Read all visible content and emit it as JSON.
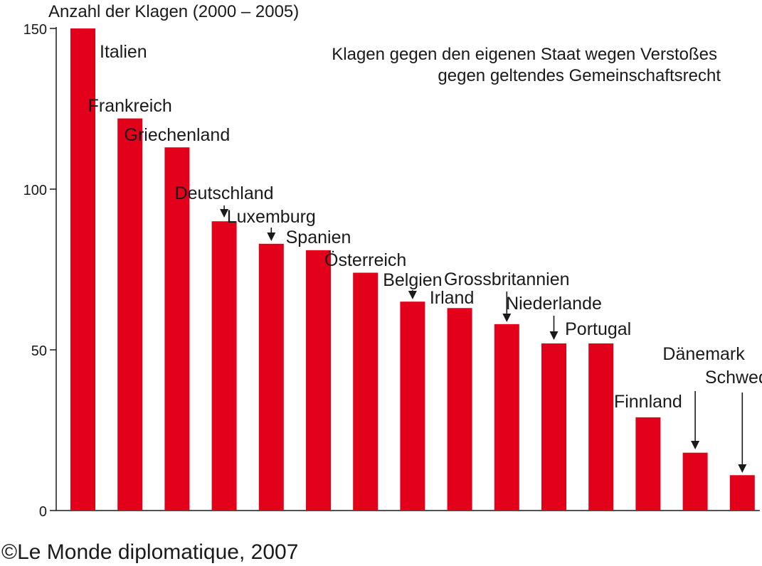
{
  "chart_data": {
    "type": "bar",
    "title": "Anzahl der Klagen (2000 – 2005)",
    "annotation": [
      "Klagen gegen den eigenen Staat wegen Verstoßes",
      "gegen geltendes Gemeinschaftsrecht"
    ],
    "credit": "©Le Monde diplomatique, 2007",
    "categories": [
      "Italien",
      "Frankreich",
      "Griechenland",
      "Deutschland",
      "Luxemburg",
      "Spanien",
      "Österreich",
      "Belgien",
      "Irland",
      "Grossbritannien",
      "Niederlande",
      "Portugal",
      "Finnland",
      "Dänemark",
      "Schweden"
    ],
    "values": [
      150,
      122,
      113,
      90,
      83,
      81,
      74,
      65,
      63,
      58,
      52,
      52,
      29,
      18,
      11
    ],
    "ylim": [
      0,
      150
    ],
    "yticks": [
      "0",
      "50",
      "100",
      "150"
    ],
    "grid": false,
    "bar_color": "#e2001a"
  }
}
